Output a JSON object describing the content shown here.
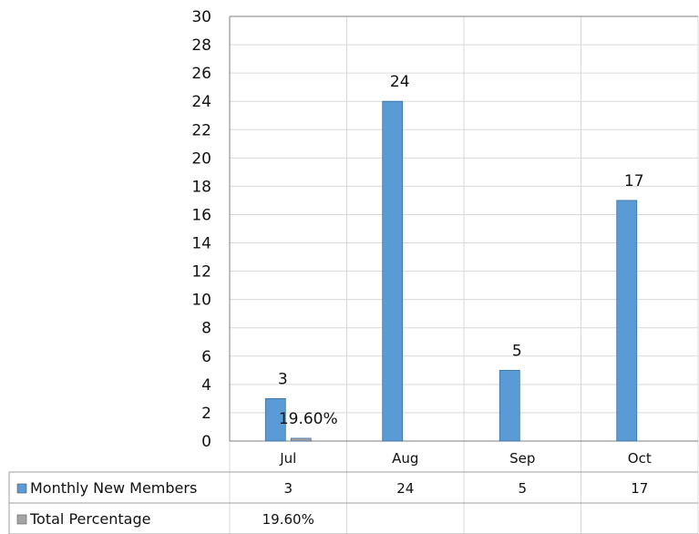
{
  "chart_data": {
    "type": "bar",
    "categories": [
      "Jul",
      "Aug",
      "Sep",
      "Oct"
    ],
    "series": [
      {
        "name": "Monthly New Members",
        "values": [
          3,
          24,
          5,
          17
        ],
        "data_labels": [
          "3",
          "24",
          "5",
          "17"
        ],
        "table_values": [
          "3",
          "24",
          "5",
          "17"
        ],
        "color": "#5b9bd5"
      },
      {
        "name": "Total Percentage",
        "values": [
          0.196,
          null,
          null,
          null
        ],
        "data_labels": [
          "19.60%",
          "",
          "",
          ""
        ],
        "table_values": [
          "19.60%",
          "",
          "",
          ""
        ],
        "color": "#a5a5a5"
      }
    ],
    "ylim": [
      0,
      30
    ],
    "yticks": [
      "0",
      "2",
      "4",
      "6",
      "8",
      "10",
      "12",
      "14",
      "16",
      "18",
      "20",
      "22",
      "24",
      "26",
      "28",
      "30"
    ],
    "grid": true,
    "legend": "data-table"
  }
}
